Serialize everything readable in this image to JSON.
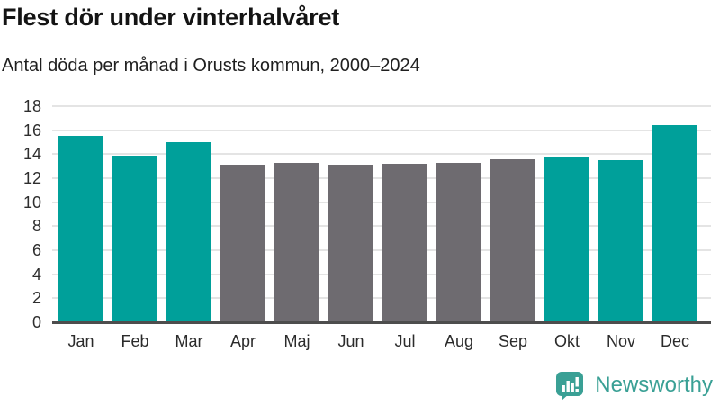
{
  "header": {
    "title": "Flest dör under vinterhalvåret",
    "subtitle": "Antal döda per månad i Orusts kommun, 2000–2024"
  },
  "colors": {
    "winter": "#00a09a",
    "summer": "#6e6b70",
    "gridline": "#e4e4e4",
    "axis_line": "#4d4d4d",
    "logo": "#3aa095"
  },
  "chart_data": {
    "type": "bar",
    "title": "Flest dör under vinterhalvåret",
    "subtitle": "Antal döda per månad i Orusts kommun, 2000–2024",
    "categories": [
      "Jan",
      "Feb",
      "Mar",
      "Apr",
      "Maj",
      "Jun",
      "Jul",
      "Aug",
      "Sep",
      "Okt",
      "Nov",
      "Dec"
    ],
    "values": [
      15.5,
      13.9,
      15.0,
      13.1,
      13.3,
      13.1,
      13.2,
      13.3,
      13.6,
      13.8,
      13.5,
      16.4
    ],
    "bar_groups": [
      "winter",
      "winter",
      "winter",
      "summer",
      "summer",
      "summer",
      "summer",
      "summer",
      "summer",
      "winter",
      "winter",
      "winter"
    ],
    "ylabel": "",
    "xlabel": "",
    "ylim": [
      0,
      18
    ],
    "ytick_step": 2,
    "yticks": [
      0,
      2,
      4,
      6,
      8,
      10,
      12,
      14,
      16,
      18
    ],
    "grid": true,
    "legend": "none"
  },
  "footer": {
    "brand": "Newsworthy"
  }
}
